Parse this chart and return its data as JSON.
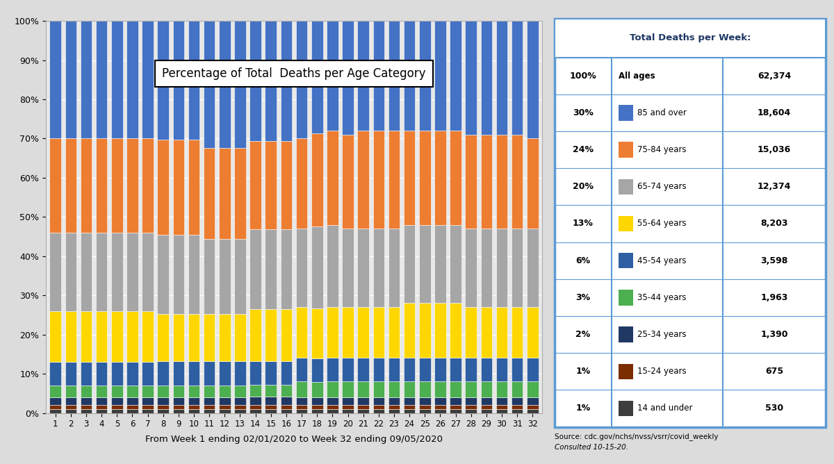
{
  "title": "Percentage of Total  Deaths per Age Category",
  "xlabel": "From Week 1 ending 02/01/2020 to Week 32 ending 09/05/2020",
  "weeks": [
    1,
    2,
    3,
    4,
    5,
    6,
    7,
    8,
    9,
    10,
    11,
    12,
    13,
    14,
    15,
    16,
    17,
    18,
    19,
    20,
    21,
    22,
    23,
    24,
    25,
    26,
    27,
    28,
    29,
    30,
    31,
    32
  ],
  "categories": [
    "14 and under",
    "15-24 years",
    "25-34 years",
    "35-44 years",
    "45-54 years",
    "55-64 years",
    "65-74 years",
    "75-84 years",
    "85 and over"
  ],
  "colors": [
    "#3D3D3D",
    "#7B2D00",
    "#203864",
    "#4CAF50",
    "#2E5FA3",
    "#FFD700",
    "#A6A6A6",
    "#ED7D31",
    "#4472C4"
  ],
  "data": {
    "14 and under": [
      1,
      1,
      1,
      1,
      1,
      1,
      1,
      1,
      1,
      1,
      1,
      1,
      1,
      1,
      1,
      1,
      1,
      1,
      1,
      1,
      1,
      1,
      1,
      1,
      1,
      1,
      1,
      1,
      1,
      1,
      1,
      1
    ],
    "15-24 years": [
      1,
      1,
      1,
      1,
      1,
      1,
      1,
      1,
      1,
      1,
      1,
      1,
      1,
      1,
      1,
      1,
      1,
      1,
      1,
      1,
      1,
      1,
      1,
      1,
      1,
      1,
      1,
      1,
      1,
      1,
      1,
      1
    ],
    "25-34 years": [
      2,
      2,
      2,
      2,
      2,
      2,
      2,
      2,
      2,
      2,
      2,
      2,
      2,
      2,
      2,
      2,
      2,
      2,
      2,
      2,
      2,
      2,
      2,
      2,
      2,
      2,
      2,
      2,
      2,
      2,
      2,
      2
    ],
    "35-44 years": [
      3,
      3,
      3,
      3,
      3,
      3,
      3,
      3,
      3,
      3,
      3,
      3,
      3,
      3,
      3,
      3,
      4,
      4,
      4,
      4,
      4,
      4,
      4,
      4,
      4,
      4,
      4,
      4,
      4,
      4,
      4,
      4
    ],
    "45-54 years": [
      6,
      6,
      6,
      6,
      6,
      6,
      6,
      6,
      6,
      6,
      6,
      6,
      6,
      6,
      6,
      6,
      6,
      6,
      6,
      6,
      6,
      6,
      6,
      6,
      6,
      6,
      6,
      6,
      6,
      6,
      6,
      6
    ],
    "55-64 years": [
      13,
      13,
      13,
      13,
      13,
      13,
      13,
      12,
      12,
      12,
      12,
      12,
      12,
      13,
      13,
      13,
      13,
      13,
      13,
      13,
      13,
      13,
      13,
      14,
      14,
      14,
      14,
      13,
      13,
      13,
      13,
      13
    ],
    "65-74 years": [
      20,
      20,
      20,
      20,
      20,
      20,
      20,
      20,
      20,
      20,
      19,
      19,
      19,
      20,
      20,
      20,
      20,
      21,
      21,
      20,
      20,
      20,
      20,
      20,
      20,
      20,
      20,
      20,
      20,
      20,
      20,
      20
    ],
    "75-84 years": [
      24,
      24,
      24,
      24,
      24,
      24,
      24,
      24,
      24,
      24,
      23,
      23,
      23,
      22,
      22,
      22,
      23,
      24,
      24,
      24,
      25,
      25,
      25,
      24,
      24,
      24,
      24,
      24,
      24,
      24,
      24,
      23
    ],
    "85 and over": [
      30,
      30,
      30,
      30,
      30,
      30,
      30,
      30,
      30,
      30,
      32,
      32,
      32,
      30,
      30,
      30,
      30,
      29,
      28,
      29,
      28,
      28,
      28,
      28,
      28,
      28,
      28,
      29,
      29,
      29,
      29,
      30
    ]
  },
  "table_data": {
    "header": "Total Deaths per Week:",
    "rows": [
      [
        "100%",
        "All ages",
        "62,374"
      ],
      [
        "30%",
        "85 and over",
        "18,604"
      ],
      [
        "24%",
        "75-84 years",
        "15,036"
      ],
      [
        "20%",
        "65-74 years",
        "12,374"
      ],
      [
        "13%",
        "55-64 years",
        "8,203"
      ],
      [
        "6%",
        "45-54 years",
        "3,598"
      ],
      [
        "3%",
        "35-44 years",
        "1,963"
      ],
      [
        "2%",
        "25-34 years",
        "1,390"
      ],
      [
        "1%",
        "15-24 years",
        "675"
      ],
      [
        "1%",
        "14 and under",
        "530"
      ]
    ],
    "legend_colors": [
      "",
      "#4472C4",
      "#ED7D31",
      "#A6A6A6",
      "#FFD700",
      "#2E5FA3",
      "#4CAF50",
      "#203864",
      "#7B2D00",
      "#3D3D3D"
    ]
  },
  "source_text": "Source: cdc.gov/nchs/nvss/vsrr/covid_weekly",
  "consulted_text": "Consulted 10-15-20.",
  "bg_color": "#DCDCDC",
  "plot_bg": "#E8E8E8",
  "ylim": [
    0,
    100
  ],
  "yticks": [
    0,
    10,
    20,
    30,
    40,
    50,
    60,
    70,
    80,
    90,
    100
  ],
  "ytick_labels": [
    "0%",
    "10%",
    "20%",
    "30%",
    "40%",
    "50%",
    "60%",
    "70%",
    "80%",
    "90%",
    "100%"
  ]
}
